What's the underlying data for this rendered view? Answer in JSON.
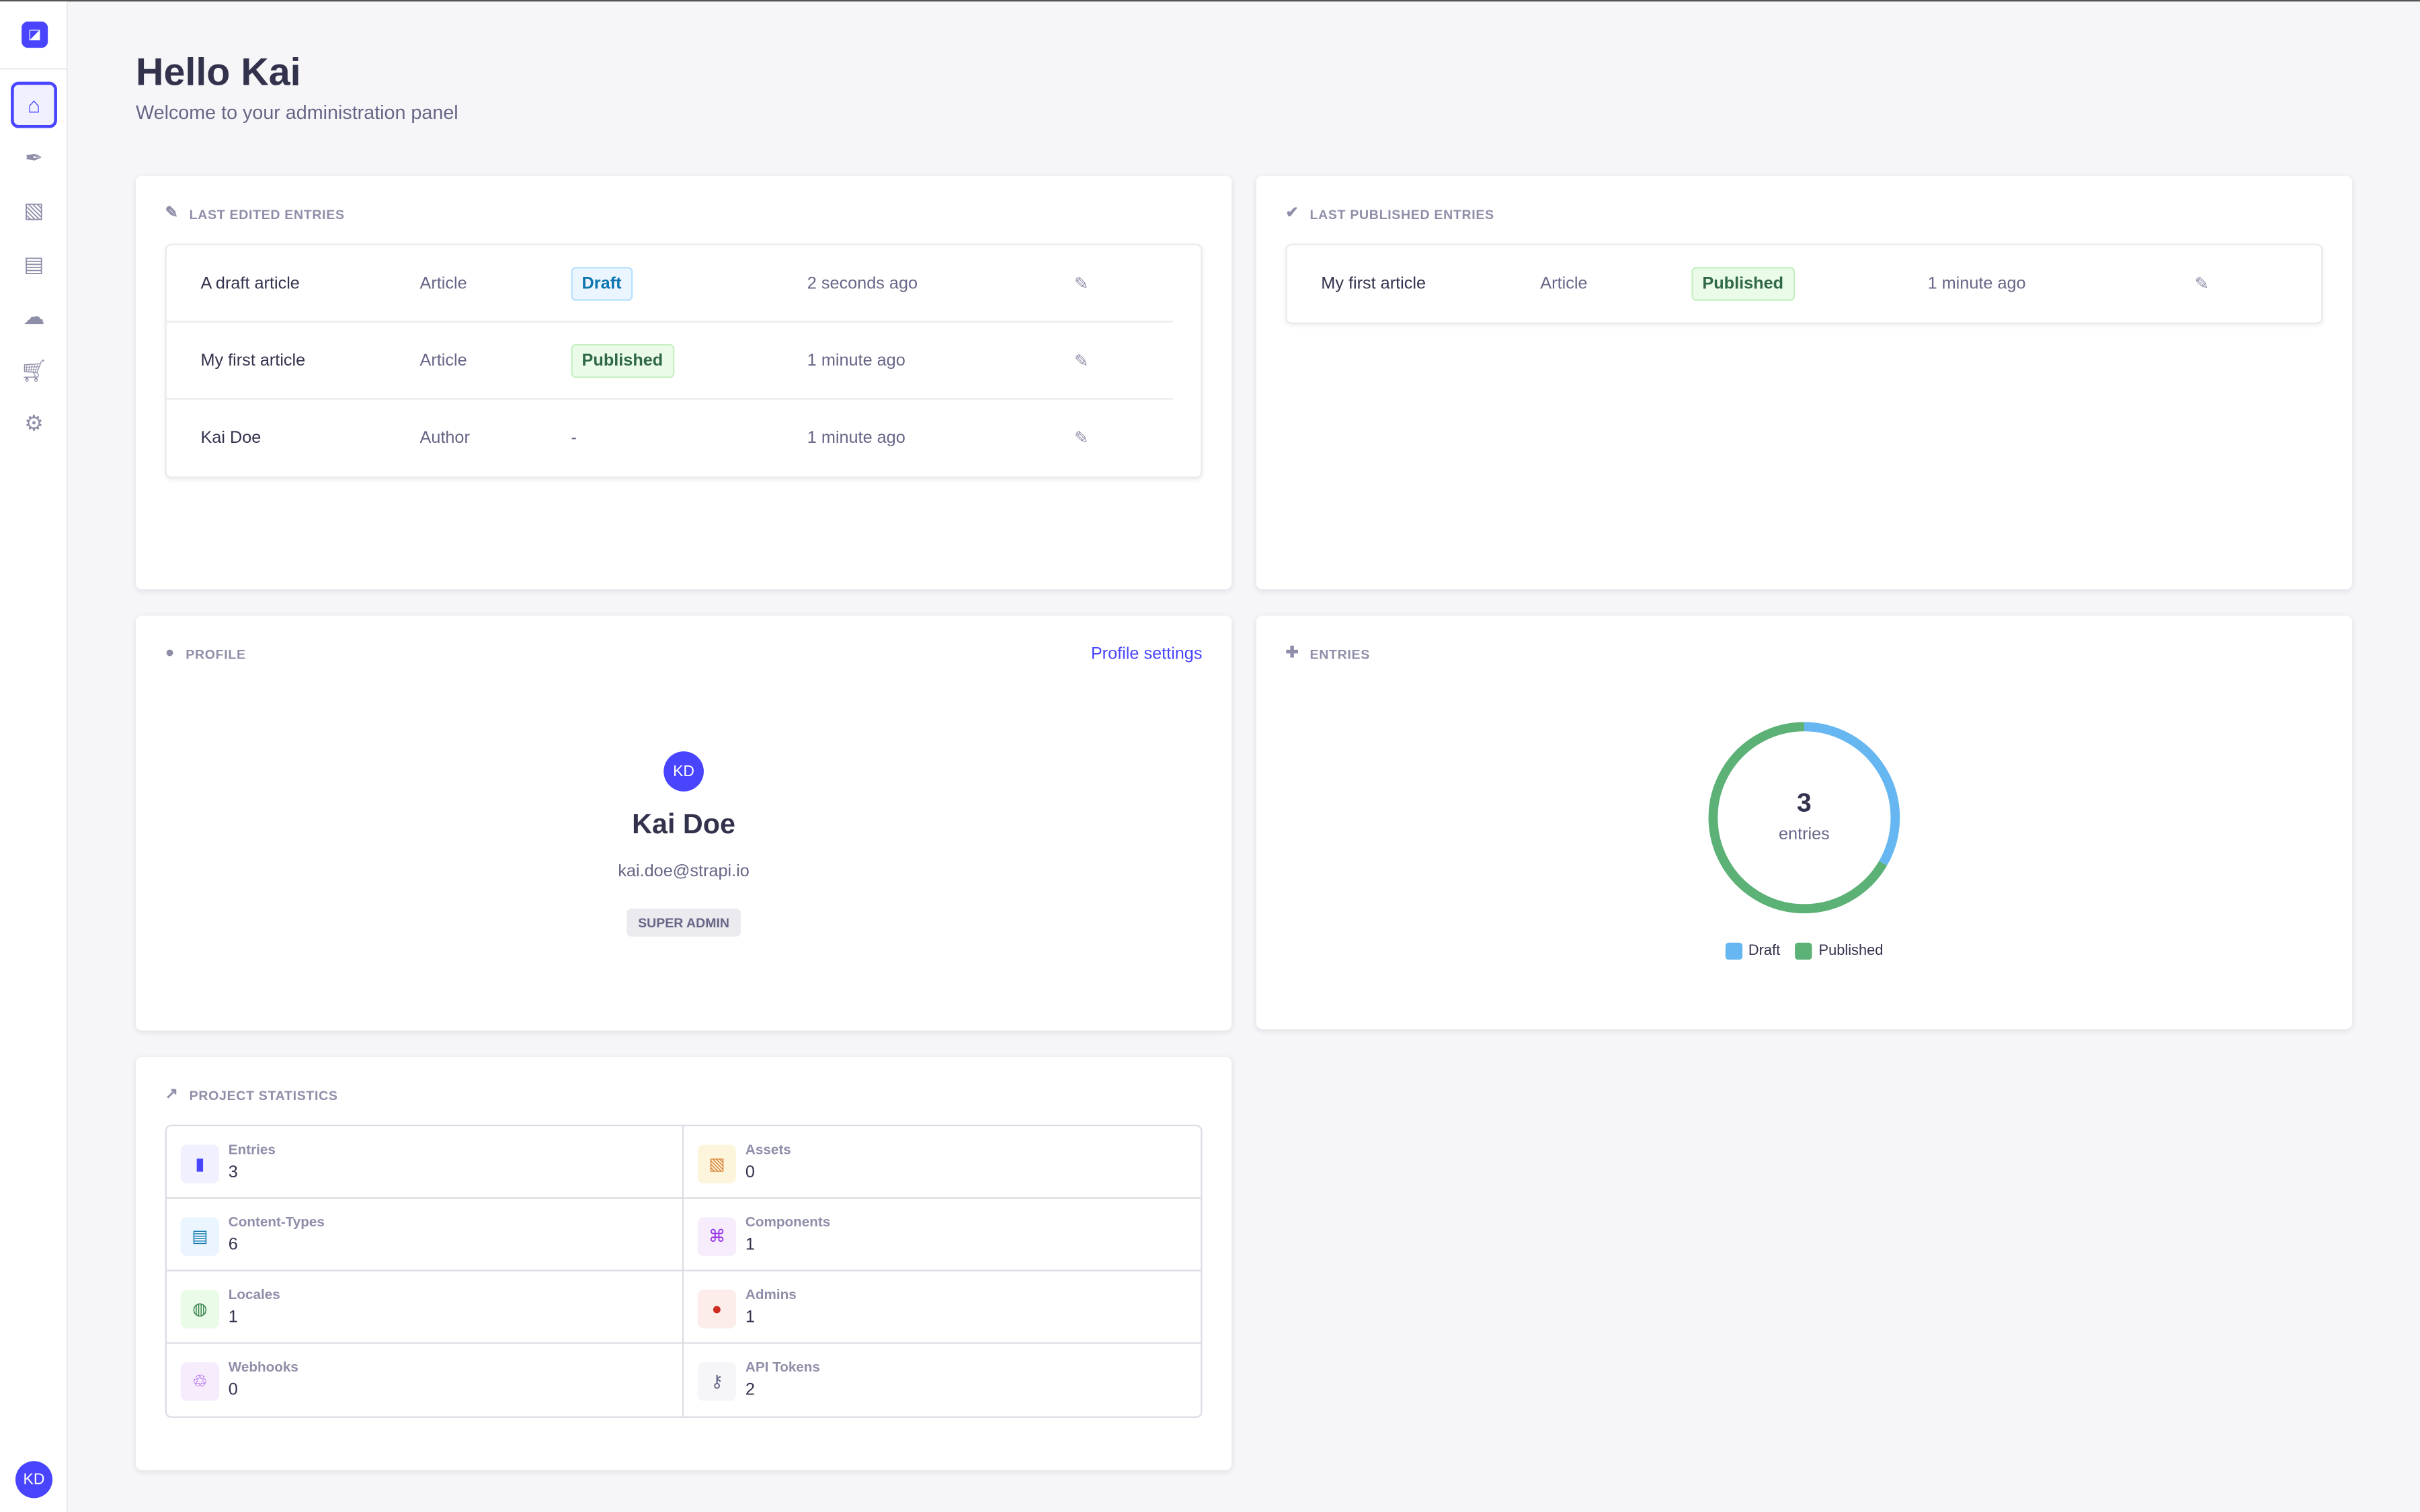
{
  "sidebar": {
    "items": [
      {
        "name": "home",
        "icon": "home-icon",
        "active": true
      },
      {
        "name": "content-manager",
        "icon": "feather-icon"
      },
      {
        "name": "media-library",
        "icon": "images-icon"
      },
      {
        "name": "content-type-builder",
        "icon": "layout-icon"
      },
      {
        "name": "cloud",
        "icon": "cloud-icon"
      },
      {
        "name": "marketplace",
        "icon": "cart-icon"
      },
      {
        "name": "settings",
        "icon": "gear-icon"
      }
    ],
    "user_initials": "KD"
  },
  "header": {
    "title": "Hello Kai",
    "subtitle": "Welcome to your administration panel"
  },
  "last_edited": {
    "title": "LAST EDITED ENTRIES",
    "rows": [
      {
        "name": "A draft article",
        "type": "Article",
        "status": "Draft",
        "time": "2 seconds ago"
      },
      {
        "name": "My first article",
        "type": "Article",
        "status": "Published",
        "time": "1 minute ago"
      },
      {
        "name": "Kai Doe",
        "type": "Author",
        "status": "-",
        "time": "1 minute ago"
      }
    ]
  },
  "last_published": {
    "title": "LAST PUBLISHED ENTRIES",
    "rows": [
      {
        "name": "My first article",
        "type": "Article",
        "status": "Published",
        "time": "1 minute ago"
      }
    ]
  },
  "profile": {
    "title": "PROFILE",
    "settings_link": "Profile settings",
    "initials": "KD",
    "name": "Kai Doe",
    "email": "kai.doe@strapi.io",
    "role": "SUPER ADMIN"
  },
  "entries_chart": {
    "title": "ENTRIES",
    "total": "3",
    "total_label": "entries",
    "chart_data": {
      "type": "pie",
      "series": [
        {
          "name": "Draft",
          "value": 1,
          "color": "#66b7f1"
        },
        {
          "name": "Published",
          "value": 2,
          "color": "#5cb176"
        }
      ],
      "legend": "bottom"
    }
  },
  "stats": {
    "title": "PROJECT STATISTICS",
    "items": [
      {
        "label": "Entries",
        "value": "3",
        "icon": "file-icon",
        "color": "#4945ff",
        "bg": "#f0f0ff"
      },
      {
        "label": "Assets",
        "value": "0",
        "icon": "images-icon",
        "color": "#d9822f",
        "bg": "#fdf4dc"
      },
      {
        "label": "Content-Types",
        "value": "6",
        "icon": "layout-icon",
        "color": "#0c75af",
        "bg": "#eaf5ff"
      },
      {
        "label": "Components",
        "value": "1",
        "icon": "puzzle-icon",
        "color": "#9736e8",
        "bg": "#f6ecfc"
      },
      {
        "label": "Locales",
        "value": "1",
        "icon": "globe-icon",
        "color": "#328048",
        "bg": "#eafbe7"
      },
      {
        "label": "Admins",
        "value": "1",
        "icon": "user-icon",
        "color": "#d02b20",
        "bg": "#fcecea"
      },
      {
        "label": "Webhooks",
        "value": "0",
        "icon": "webhook-icon",
        "color": "#9736e8",
        "bg": "#f6ecfc"
      },
      {
        "label": "API Tokens",
        "value": "2",
        "icon": "key-icon",
        "color": "#666687",
        "bg": "#f6f6f9"
      }
    ]
  }
}
